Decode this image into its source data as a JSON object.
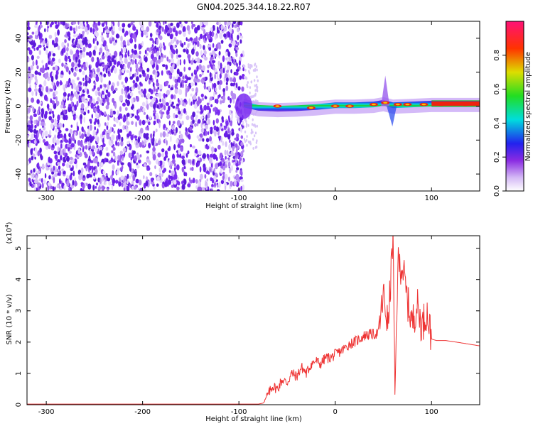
{
  "figure": {
    "title": "GN04.2025.344.18.22.R07"
  },
  "colors": {
    "snr_line": "#ee3333",
    "noise_purple": "#7a2cf0",
    "axis": "#000000"
  },
  "chart_data": [
    {
      "type": "heatmap",
      "title": "GN04.2025.344.18.22.R07",
      "xlabel": "Height of straight line (km)",
      "ylabel": "Frequency (Hz)",
      "xlim": [
        -320,
        150
      ],
      "ylim": [
        -50,
        50
      ],
      "xticks": [
        -300,
        -200,
        -100,
        0,
        100
      ],
      "yticks": [
        -40,
        -20,
        0,
        20,
        40
      ],
      "grid": false,
      "colorbar": {
        "label": "Normalized spectral amplitude",
        "range": [
          0,
          1
        ],
        "ticks": [
          0.0,
          0.2,
          0.4,
          0.6,
          0.8
        ],
        "colormap": "white-purple-blue-cyan-green-yellow-red-magenta"
      },
      "description_regions": [
        {
          "x_range": [
            -320,
            -95
          ],
          "content": "diffuse noise",
          "amplitude_range": [
            0.05,
            0.25
          ]
        },
        {
          "x_range": [
            -95,
            150
          ],
          "content": "narrow band near 0 Hz",
          "amplitude_range": [
            0.4,
            1.0
          ]
        }
      ],
      "band_centerline": [
        {
          "x": -95,
          "y": 1.0
        },
        {
          "x": -80,
          "y": -1.0
        },
        {
          "x": -60,
          "y": -1.5
        },
        {
          "x": -40,
          "y": -1.2
        },
        {
          "x": -20,
          "y": -0.5
        },
        {
          "x": 0,
          "y": 0.5
        },
        {
          "x": 20,
          "y": 0.5
        },
        {
          "x": 40,
          "y": 1.0
        },
        {
          "x": 50,
          "y": 2.0
        },
        {
          "x": 60,
          "y": 0.5
        },
        {
          "x": 80,
          "y": 1.0
        },
        {
          "x": 100,
          "y": 1.5
        },
        {
          "x": 120,
          "y": 1.5
        },
        {
          "x": 150,
          "y": 1.5
        }
      ],
      "hot_spots": [
        {
          "x": -60,
          "y": 0
        },
        {
          "x": -25,
          "y": -1
        },
        {
          "x": 0,
          "y": 0
        },
        {
          "x": 15,
          "y": 0
        },
        {
          "x": 40,
          "y": 1
        },
        {
          "x": 52,
          "y": 2
        },
        {
          "x": 65,
          "y": 1
        },
        {
          "x": 75,
          "y": 1
        },
        {
          "x": 92,
          "y": 1
        },
        {
          "x": 110,
          "y": 1
        },
        {
          "x": 135,
          "y": 1
        }
      ]
    },
    {
      "type": "line",
      "xlabel": "Height of straight line (km)",
      "ylabel": "SNR (10 * v/v)",
      "y_multiplier": "(x10",
      "y_multiplier_exponent": "4",
      "y_multiplier_close": ")",
      "xlim": [
        -320,
        150
      ],
      "ylim": [
        0,
        5.4
      ],
      "xticks": [
        -300,
        -200,
        -100,
        0,
        100
      ],
      "yticks": [
        0,
        1,
        2,
        3,
        4,
        5
      ],
      "grid": false,
      "series": [
        {
          "color": "#ee3333",
          "points": [
            [
              -320,
              0.02
            ],
            [
              -250,
              0.02
            ],
            [
              -150,
              0.02
            ],
            [
              -100,
              0.02
            ],
            [
              -80,
              0.02
            ],
            [
              -75,
              0.05
            ],
            [
              -70,
              0.3
            ],
            [
              -65,
              0.6
            ],
            [
              -60,
              0.5
            ],
            [
              -55,
              0.8
            ],
            [
              -50,
              0.7
            ],
            [
              -45,
              1.0
            ],
            [
              -40,
              0.9
            ],
            [
              -35,
              1.2
            ],
            [
              -30,
              1.0
            ],
            [
              -25,
              1.3
            ],
            [
              -20,
              1.4
            ],
            [
              -15,
              1.3
            ],
            [
              -10,
              1.5
            ],
            [
              -5,
              1.5
            ],
            [
              0,
              1.6
            ],
            [
              5,
              1.7
            ],
            [
              10,
              1.8
            ],
            [
              15,
              1.95
            ],
            [
              20,
              2.0
            ],
            [
              25,
              2.1
            ],
            [
              30,
              2.2
            ],
            [
              35,
              2.25
            ],
            [
              40,
              2.25
            ],
            [
              45,
              2.3
            ],
            [
              50,
              3.5
            ],
            [
              55,
              2.5
            ],
            [
              60,
              5.4
            ],
            [
              62,
              0.2
            ],
            [
              65,
              4.5
            ],
            [
              70,
              4.4
            ],
            [
              75,
              3.3
            ],
            [
              80,
              2.6
            ],
            [
              85,
              3.2
            ],
            [
              90,
              2.5
            ],
            [
              95,
              3.0
            ],
            [
              100,
              2.1
            ],
            [
              105,
              2.05
            ],
            [
              115,
              2.05
            ],
            [
              130,
              1.98
            ],
            [
              150,
              1.88
            ]
          ]
        }
      ]
    }
  ]
}
